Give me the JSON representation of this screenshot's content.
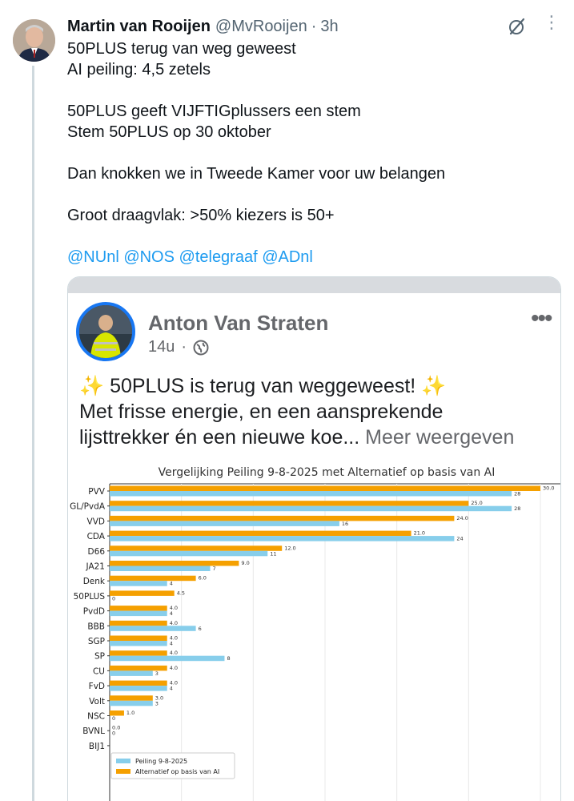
{
  "tweet": {
    "author_name": "Martin van Rooijen",
    "author_handle": "@MvRooijen",
    "separator": "·",
    "time": "3h",
    "lines": [
      "50PLUS terug van weg geweest",
      "AI peiling: 4,5 zetels",
      "",
      "50PLUS geeft VIJFTIGplussers een stem",
      "Stem 50PLUS op 30 oktober",
      "",
      "Dan knokken we in Tweede Kamer voor uw belangen",
      "",
      "Groot draagvlak: >50% kiezers is 50+",
      ""
    ],
    "mentions": "@NUnl @NOS @telegraaf @ADnl",
    "more_icon": "⋮"
  },
  "embedded_post": {
    "author": "Anton Van Straten",
    "age": "14u",
    "meta_separator": "·",
    "dots": "•••",
    "line1": "✨ 50PLUS is terug van weggeweest! ✨",
    "line2": "Met frisse energie, en een aansprekende",
    "line3": "lijsttrekker én een nieuwe koe...",
    "more": "Meer weergeven"
  },
  "colors": {
    "peiling": "#87ceeb",
    "alternatief": "#f5a000",
    "link": "#1d9bf0"
  },
  "chart_data": {
    "type": "bar",
    "orientation": "horizontal",
    "title": "Vergelijking Peiling 9-8-2025 met Alternatief op basis van AI",
    "categories": [
      "PVV",
      "GL/PvdA",
      "VVD",
      "CDA",
      "D66",
      "JA21",
      "Denk",
      "50PLUS",
      "PvdD",
      "BBB",
      "SGP",
      "SP",
      "CU",
      "FvD",
      "Volt",
      "NSC",
      "BVNL",
      "BIJ1"
    ],
    "series": [
      {
        "name": "Peiling 9-8-2025",
        "color": "#87ceeb",
        "values": [
          28,
          28,
          16,
          24,
          11,
          7,
          4,
          0,
          4,
          6,
          4,
          8,
          3,
          4,
          3,
          0,
          0,
          null
        ],
        "labels": [
          "28",
          "28",
          "16",
          "24",
          "11",
          "7",
          "4",
          "0",
          "4",
          "6",
          "4",
          "8",
          "3",
          "4",
          "3",
          "0",
          "0",
          ""
        ]
      },
      {
        "name": "Alternatief op basis van AI",
        "color": "#f5a000",
        "values": [
          30.0,
          25.0,
          24.0,
          21.0,
          12.0,
          9.0,
          6.0,
          4.5,
          4.0,
          4.0,
          4.0,
          4.0,
          4.0,
          4.0,
          3.0,
          1.0,
          0.0,
          null
        ],
        "labels": [
          "30.0",
          "25.0",
          "24.0",
          "21.0",
          "12.0",
          "9.0",
          "6.0",
          "4.5",
          "4.0",
          "4.0",
          "4.0",
          "4.0",
          "4.0",
          "4.0",
          "3.0",
          "1.0",
          "0.0",
          ""
        ]
      }
    ],
    "xlim": [
      0,
      30
    ],
    "legend": "lower-left",
    "grid": true
  }
}
